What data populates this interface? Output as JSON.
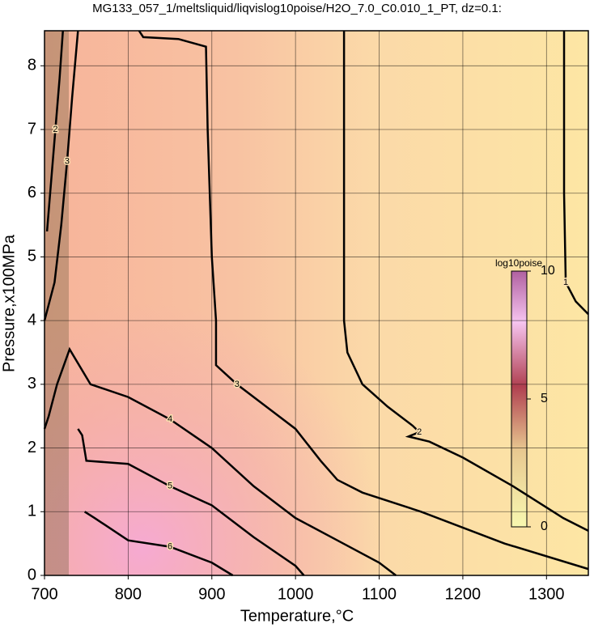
{
  "chart_data": {
    "type": "contour",
    "title": "MG133_057_1/meltsliquid/liqvislog10poise/H2O_7.0_C0.010_1_PT, dz=0.1:",
    "x_label": "Temperature,°C",
    "y_label": "Pressure,x100MPa",
    "xlim": [
      700,
      1350
    ],
    "ylim": [
      0,
      8.55
    ],
    "xticks": [
      700,
      800,
      900,
      1000,
      1100,
      1200,
      1300
    ],
    "yticks": [
      0,
      1,
      2,
      3,
      4,
      5,
      6,
      7,
      8
    ],
    "grid": true,
    "contours": [
      {
        "level": 1,
        "x": [
          1321,
          1321,
          1323,
          1335,
          1350
        ],
        "y": [
          8.55,
          6.0,
          4.6,
          4.3,
          4.1
        ]
      },
      {
        "level": 2,
        "x": [
          1058,
          1058,
          1058,
          1062,
          1080,
          1110,
          1140,
          1148,
          1135,
          1160,
          1200,
          1260,
          1320,
          1350
        ],
        "y": [
          8.55,
          6.5,
          4.0,
          3.5,
          3.0,
          2.65,
          2.35,
          2.25,
          2.18,
          2.1,
          1.85,
          1.4,
          0.9,
          0.7
        ]
      },
      {
        "level": 2,
        "x": [
          703,
          708,
          713,
          718,
          722
        ],
        "y": [
          5.4,
          6.2,
          7.0,
          7.8,
          8.55
        ]
      },
      {
        "level": 3,
        "x": [
          813,
          818,
          860,
          893,
          895,
          900,
          905,
          905,
          930,
          960,
          1000,
          1030,
          1050,
          1080,
          1150,
          1250,
          1350
        ],
        "y": [
          8.55,
          8.45,
          8.42,
          8.3,
          7.0,
          5.0,
          4.0,
          3.3,
          3.0,
          2.7,
          2.3,
          1.8,
          1.5,
          1.3,
          1.0,
          0.5,
          0.1
        ]
      },
      {
        "level": 3,
        "x": [
          700,
          712,
          720,
          727,
          733,
          740
        ],
        "y": [
          4.0,
          4.6,
          5.5,
          6.5,
          7.5,
          8.55
        ]
      },
      {
        "level": 4,
        "x": [
          700,
          705,
          715,
          730,
          755,
          800,
          850,
          900,
          950,
          1000,
          1050,
          1100,
          1120
        ],
        "y": [
          2.3,
          2.5,
          3.0,
          3.55,
          3.0,
          2.8,
          2.45,
          2.0,
          1.4,
          0.9,
          0.55,
          0.2,
          0.0
        ]
      },
      {
        "level": 5,
        "x": [
          740,
          745,
          750,
          800,
          850,
          900,
          950,
          1000,
          1010
        ],
        "y": [
          2.3,
          2.2,
          1.8,
          1.75,
          1.4,
          1.1,
          0.6,
          0.15,
          0.0
        ]
      },
      {
        "level": 6,
        "x": [
          748,
          760,
          800,
          850,
          900,
          925
        ],
        "y": [
          1.0,
          0.9,
          0.55,
          0.45,
          0.2,
          0.0
        ]
      }
    ],
    "colorbar": {
      "label": "log10poise",
      "lim": [
        0,
        10
      ],
      "ticks": [
        0,
        5,
        10
      ]
    }
  }
}
